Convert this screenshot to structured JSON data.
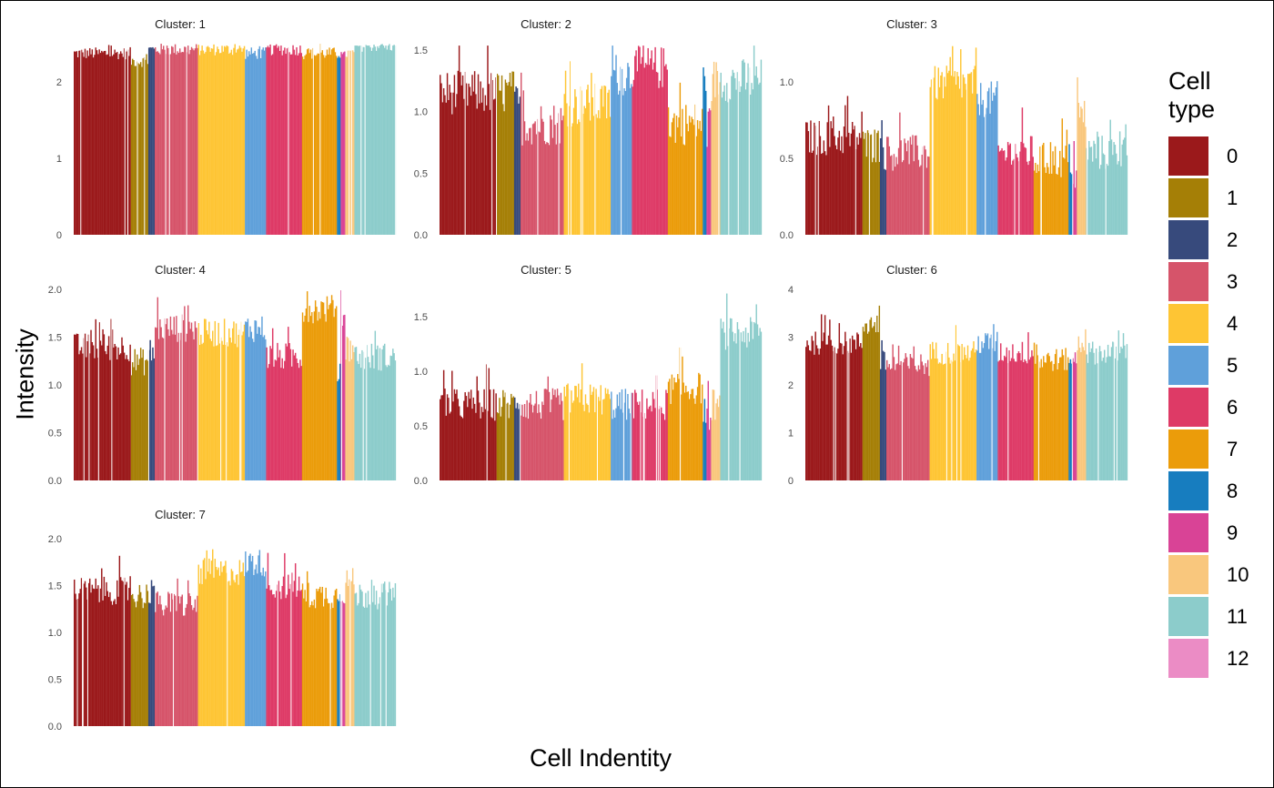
{
  "chart_data": {
    "type": "bar",
    "xlabel": "Cell Indentity",
    "ylabel": "Intensity",
    "legend": {
      "title_lines": [
        "Cell",
        "type"
      ],
      "position": "right",
      "items": [
        {
          "label": "0",
          "color": "#9B191B"
        },
        {
          "label": "1",
          "color": "#A57F06"
        },
        {
          "label": "2",
          "color": "#374A7C"
        },
        {
          "label": "3",
          "color": "#D6546A"
        },
        {
          "label": "4",
          "color": "#FEC534"
        },
        {
          "label": "5",
          "color": "#5FA0DA"
        },
        {
          "label": "6",
          "color": "#DE3A66"
        },
        {
          "label": "7",
          "color": "#EB9C0A"
        },
        {
          "label": "8",
          "color": "#177DBF"
        },
        {
          "label": "9",
          "color": "#D94396"
        },
        {
          "label": "10",
          "color": "#F9C77D"
        },
        {
          "label": "11",
          "color": "#8CCCCB"
        },
        {
          "label": "12",
          "color": "#EB8CC5"
        }
      ]
    },
    "cell_type_order": [
      0,
      1,
      2,
      3,
      4,
      5,
      6,
      7,
      8,
      9,
      10,
      11
    ],
    "group_widths": [
      62,
      19,
      7,
      47,
      51,
      23,
      39,
      38,
      4,
      5,
      10,
      45
    ],
    "panels": [
      {
        "title": "Cluster: 1",
        "ylim": [
          0,
          2.5
        ],
        "yticks": [
          "0",
          "1",
          "2"
        ],
        "ytick_values": [
          0,
          1,
          2
        ],
        "levels": [
          2.35,
          2.25,
          2.4,
          2.4,
          2.4,
          2.35,
          2.4,
          2.35,
          2.35,
          2.3,
          2.35,
          2.45
        ],
        "spread": 0.08
      },
      {
        "title": "Cluster: 2",
        "ylim": [
          0,
          1.55
        ],
        "yticks": [
          "0.0",
          "0.5",
          "1.0",
          "1.5"
        ],
        "ytick_values": [
          0,
          0.5,
          1,
          1.5
        ],
        "levels": [
          1.1,
          1.1,
          1.0,
          0.85,
          1.0,
          1.25,
          1.3,
          0.85,
          1.2,
          0.8,
          1.2,
          1.2
        ],
        "spread": 0.18
      },
      {
        "title": "Cluster: 3",
        "ylim": [
          0,
          1.25
        ],
        "yticks": [
          "0.0",
          "0.5",
          "1.0"
        ],
        "ytick_values": [
          0,
          0.5,
          1
        ],
        "levels": [
          0.6,
          0.55,
          0.5,
          0.5,
          0.95,
          0.85,
          0.5,
          0.45,
          0.45,
          0.35,
          0.75,
          0.5
        ],
        "spread": 0.12
      },
      {
        "title": "Cluster: 4",
        "ylim": [
          0,
          2.0
        ],
        "yticks": [
          "0.0",
          "0.5",
          "1.0",
          "1.5",
          "2.0"
        ],
        "ytick_values": [
          0,
          0.5,
          1,
          1.5,
          2
        ],
        "levels": [
          1.35,
          1.2,
          1.3,
          1.55,
          1.5,
          1.55,
          1.25,
          1.75,
          1.1,
          1.7,
          1.35,
          1.25
        ],
        "spread": 0.15
      },
      {
        "title": "Cluster: 5",
        "ylim": [
          0,
          1.75
        ],
        "yticks": [
          "0.0",
          "0.5",
          "1.0",
          "1.5"
        ],
        "ytick_values": [
          0,
          0.5,
          1,
          1.5
        ],
        "levels": [
          0.65,
          0.65,
          0.7,
          0.65,
          0.7,
          0.65,
          0.65,
          0.8,
          0.6,
          0.5,
          0.65,
          1.3
        ],
        "spread": 0.15
      },
      {
        "title": "Cluster: 6",
        "ylim": [
          0,
          4.0
        ],
        "yticks": [
          "0",
          "1",
          "2",
          "3",
          "4"
        ],
        "ytick_values": [
          0,
          1,
          2,
          3,
          4
        ],
        "levels": [
          2.8,
          3.2,
          2.4,
          2.35,
          2.6,
          2.8,
          2.6,
          2.45,
          2.5,
          2.3,
          2.8,
          2.6
        ],
        "spread": 0.25
      },
      {
        "title": "Cluster: 7",
        "ylim": [
          0,
          2.05
        ],
        "yticks": [
          "0.0",
          "0.5",
          "1.0",
          "1.5",
          "2.0"
        ],
        "ytick_values": [
          0,
          0.5,
          1,
          1.5,
          2
        ],
        "levels": [
          1.4,
          1.35,
          1.4,
          1.25,
          1.6,
          1.7,
          1.45,
          1.35,
          1.4,
          1.4,
          1.5,
          1.35
        ],
        "spread": 0.15
      }
    ]
  }
}
